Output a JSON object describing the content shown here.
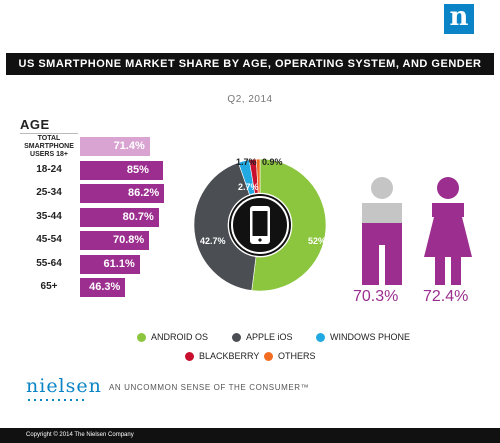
{
  "brand": {
    "logo_letter": "n",
    "wordmark": "nielsen",
    "tagline": "AN UNCOMMON SENSE OF THE CONSUMER™"
  },
  "title": "US SMARTPHONE MARKET SHARE BY AGE, OPERATING SYSTEM, AND GENDER",
  "subtitle": "Q2, 2014",
  "copyright": "Copyright © 2014 The Nielsen Company",
  "colors": {
    "purple": "#9b2e8f",
    "purple_light": "#d9a4d1",
    "android": "#8cc63f",
    "ios": "#4b4f54",
    "windows": "#22a9e1",
    "blackberry": "#c8102e",
    "others": "#f26c22",
    "male_head": "#c5c5c5"
  },
  "chart_data": [
    {
      "type": "bar",
      "title": "AGE",
      "categories": [
        "TOTAL SMARTPHONE USERS 18+",
        "18-24",
        "25-34",
        "35-44",
        "45-54",
        "55-64",
        "65+"
      ],
      "values": [
        71.4,
        85,
        86.2,
        80.7,
        70.8,
        61.1,
        46.3
      ],
      "labels": [
        "71.4%",
        "85%",
        "86.2%",
        "80.7%",
        "70.8%",
        "61.1%",
        "46.3%"
      ],
      "unit": "%"
    },
    {
      "type": "pie",
      "icon": "smartphone-icon",
      "slices": [
        {
          "name": "ANDROID OS",
          "value": 52,
          "label": "52%",
          "color": "#8cc63f"
        },
        {
          "name": "APPLE iOS",
          "value": 42.7,
          "label": "42.7%",
          "color": "#4b4f54"
        },
        {
          "name": "WINDOWS PHONE",
          "value": 2.7,
          "label": "2.7%",
          "color": "#22a9e1"
        },
        {
          "name": "BLACKBERRY",
          "value": 1.7,
          "label": "1.7%",
          "color": "#c8102e"
        },
        {
          "name": "OTHERS",
          "value": 0.9,
          "label": "0.9%",
          "color": "#f26c22"
        }
      ]
    },
    {
      "type": "bar",
      "categories": [
        "male",
        "female"
      ],
      "values": [
        70.3,
        72.4
      ],
      "labels": [
        "70.3%",
        "72.4%"
      ],
      "icons": [
        "male-icon",
        "female-icon"
      ]
    }
  ]
}
